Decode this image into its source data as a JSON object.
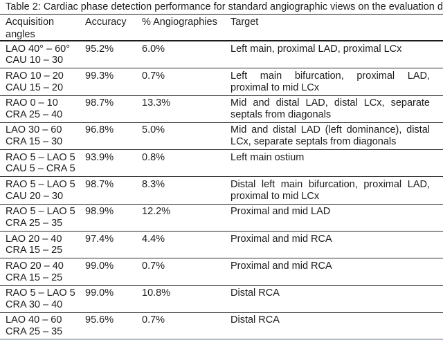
{
  "caption": "Table 2: Cardiac phase detection performance for standard angiographic views on the evaluation d",
  "table": {
    "headers": {
      "acquisition_angles": "Acquisition angles",
      "accuracy": "Accuracy",
      "pct_angiographies": "% Angiographies",
      "target": "Target"
    },
    "rows": [
      {
        "angles1": "LAO 40° – 60°",
        "angles2": "CAU 10 – 30",
        "accuracy": "95.2%",
        "pct": "6.0%",
        "target": "Left main, proximal LAD, proximal LCx"
      },
      {
        "angles1": "RAO 10 – 20",
        "angles2": "CAU 15 – 20",
        "accuracy": "99.3%",
        "pct": "0.7%",
        "target": "Left main bifurcation, proximal LAD, proximal to mid LCx"
      },
      {
        "angles1": "RAO 0 – 10",
        "angles2": "CRA 25 – 40",
        "accuracy": "98.7%",
        "pct": "13.3%",
        "target": "Mid and distal LAD, distal LCx, separate septals from diagonals"
      },
      {
        "angles1": "LAO 30 – 60",
        "angles2": "CRA 15 – 30",
        "accuracy": "96.8%",
        "pct": "5.0%",
        "target": "Mid and distal LAD (left dominance), distal LCx, separate septals from diagonals"
      },
      {
        "angles1": "RAO 5 – LAO 5",
        "angles2": "CAU 5 – CRA 5",
        "accuracy": "93.9%",
        "pct": "0.8%",
        "target": "Left main ostium"
      },
      {
        "angles1": "RAO 5 – LAO 5",
        "angles2": "CAU 20 – 30",
        "accuracy": "98.7%",
        "pct": "8.3%",
        "target": "Distal left main bifurcation, proximal LAD, proximal to mid LCx"
      },
      {
        "angles1": "RAO 5 – LAO 5",
        "angles2": "CRA 25 – 35",
        "accuracy": "98.9%",
        "pct": "12.2%",
        "target": "Proximal and mid LAD"
      },
      {
        "angles1": "LAO 20 – 40",
        "angles2": "CRA 15 – 25",
        "accuracy": "97.4%",
        "pct": "4.4%",
        "target": "Proximal and mid RCA"
      },
      {
        "angles1": "RAO 20 – 40",
        "angles2": "CRA 15 – 25",
        "accuracy": "99.0%",
        "pct": "0.7%",
        "target": "Proximal and mid RCA"
      },
      {
        "angles1": "RAO 5 – LAO 5",
        "angles2": "CRA 30 – 40",
        "accuracy": "99.0%",
        "pct": "10.8%",
        "target": "Distal RCA"
      },
      {
        "angles1": "LAO 40 – 60",
        "angles2": "CRA 25 – 35",
        "accuracy": "95.6%",
        "pct": "0.7%",
        "target": "Distal RCA"
      }
    ]
  },
  "colors": {
    "text": "#1c1c1c",
    "rule_dark": "#1b1b1b",
    "rule_row": "#2b2b2b",
    "bottom_edge": "#b3bac6"
  }
}
